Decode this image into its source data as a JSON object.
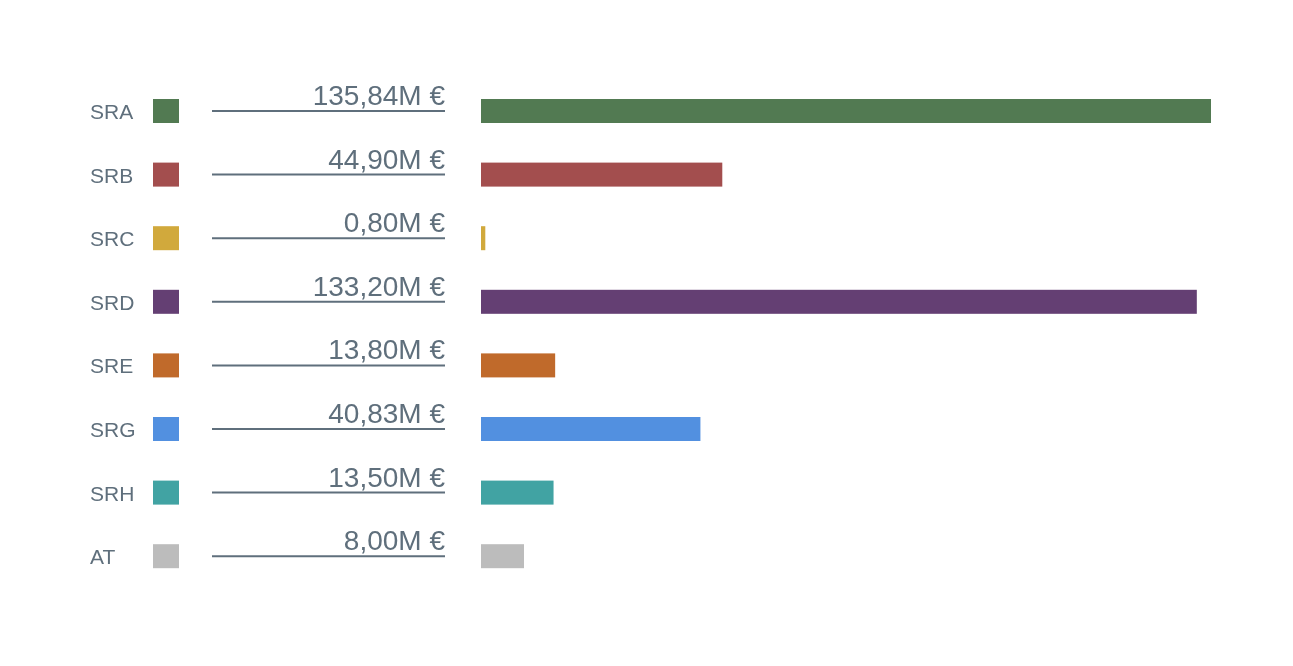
{
  "chart_data": {
    "type": "bar",
    "orientation": "horizontal",
    "categories": [
      "SRA",
      "SRB",
      "SRC",
      "SRD",
      "SRE",
      "SRG",
      "SRH",
      "AT"
    ],
    "values": [
      135.84,
      44.9,
      0.8,
      133.2,
      13.8,
      40.83,
      13.5,
      8
    ],
    "value_labels": [
      "135,84M €",
      "44,90M €",
      "0,80M €",
      "133,20M €",
      "13,80M €",
      "40,83M €",
      "13,50M €",
      "8,00M €"
    ],
    "colors": [
      "#527a52",
      "#a34e4e",
      "#d1a93c",
      "#643f73",
      "#c06a2b",
      "#5290e0",
      "#41a3a3",
      "#bcbcbc"
    ]
  }
}
